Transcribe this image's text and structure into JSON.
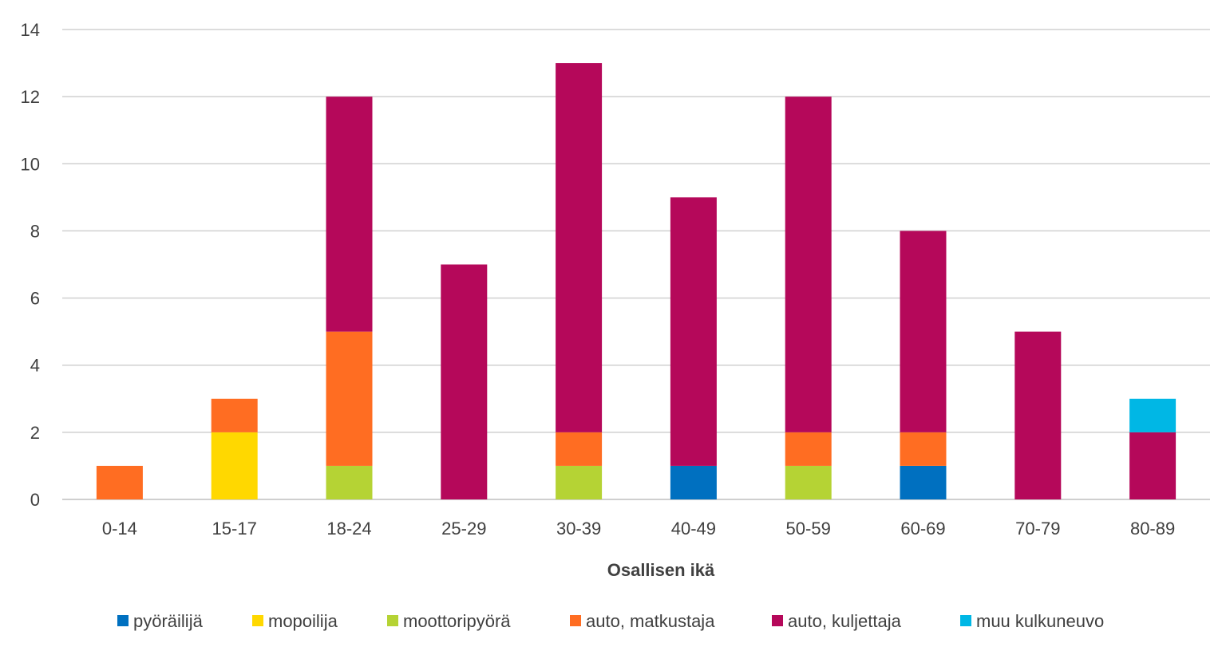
{
  "chart_data": {
    "type": "bar",
    "stacked": true,
    "title": "",
    "xlabel": "Osallisen ikä",
    "ylabel": "",
    "ylim": [
      0,
      14
    ],
    "yticks": [
      0,
      2,
      4,
      6,
      8,
      10,
      12,
      14
    ],
    "grid": true,
    "legend_position": "bottom",
    "categories": [
      "0-14",
      "15-17",
      "18-24",
      "25-29",
      "30-39",
      "40-49",
      "50-59",
      "60-69",
      "70-79",
      "80-89"
    ],
    "series": [
      {
        "name": "pyöräilijä",
        "color": "#0070C0",
        "values": [
          0,
          0,
          0,
          0,
          0,
          1,
          0,
          1,
          0,
          0
        ]
      },
      {
        "name": "mopoilija",
        "color": "#FFD800",
        "values": [
          0,
          2,
          0,
          0,
          0,
          0,
          0,
          0,
          0,
          0
        ]
      },
      {
        "name": "moottoripyörä",
        "color": "#B5D334",
        "values": [
          0,
          0,
          1,
          0,
          1,
          0,
          1,
          0,
          0,
          0
        ]
      },
      {
        "name": "auto, matkustaja",
        "color": "#FF6D22",
        "values": [
          1,
          1,
          4,
          0,
          1,
          0,
          1,
          1,
          0,
          0
        ]
      },
      {
        "name": "auto, kuljettaja",
        "color": "#B5085A",
        "values": [
          0,
          0,
          7,
          7,
          11,
          8,
          10,
          6,
          5,
          2
        ]
      },
      {
        "name": "muu kulkuneuvo",
        "color": "#00B7E5",
        "values": [
          0,
          0,
          0,
          0,
          0,
          0,
          0,
          0,
          0,
          1
        ]
      }
    ]
  }
}
